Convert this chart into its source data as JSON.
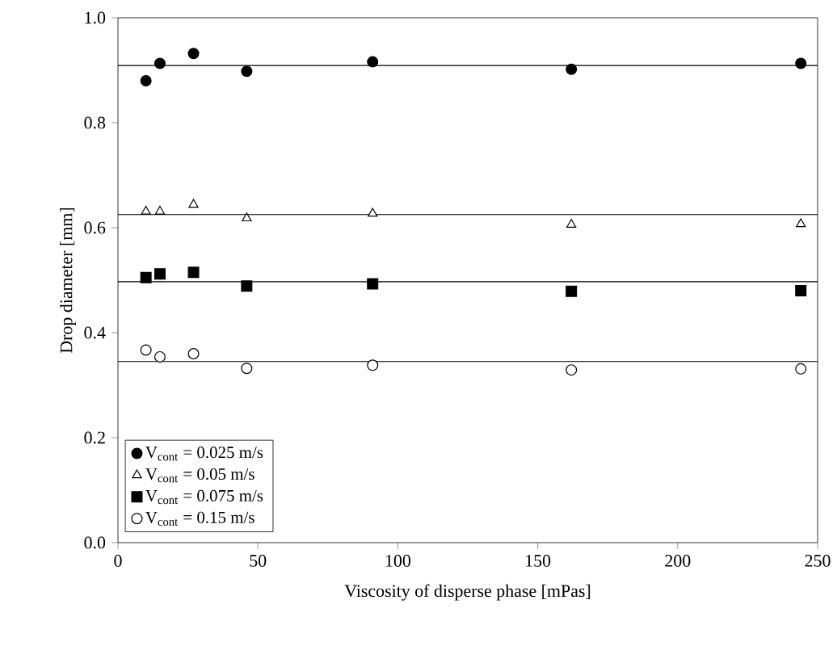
{
  "chart_data": {
    "type": "scatter",
    "xlabel": "Viscosity of disperse phase [mPas]",
    "ylabel": "Drop diameter [mm]",
    "x": [
      10,
      15,
      27,
      46,
      91,
      162,
      244
    ],
    "series": [
      {
        "name": "V$_{cont}$ = 0.025 m/s",
        "color": "#000000",
        "marker": "circle",
        "values": [
          0.88,
          0.913,
          0.932,
          0.898,
          0.916,
          0.902,
          0.913
        ]
      },
      {
        "name": "V$_{cont}$ = 0.05 m/s",
        "color": "#000000",
        "marker": "triangle",
        "values": [
          0.631,
          0.631,
          0.644,
          0.618,
          0.627,
          0.606,
          0.607
        ]
      },
      {
        "name": "V$_{cont}$ = 0.075 m/s",
        "color": "#000000",
        "marker": "square",
        "values": [
          0.505,
          0.512,
          0.515,
          0.489,
          0.493,
          0.479,
          0.48
        ]
      },
      {
        "name": "V$_{cont}$ = 0.15 m/s",
        "color": "#000000",
        "marker": "circle",
        "values": [
          0.367,
          0.354,
          0.36,
          0.332,
          0.338,
          0.329,
          0.331
        ]
      }
    ],
    "ref_lines": [
      {
        "axis": "y",
        "value": 0.909
      },
      {
        "axis": "y",
        "value": 0.625
      },
      {
        "axis": "y",
        "value": 0.497
      },
      {
        "axis": "y",
        "value": 0.345
      }
    ],
    "xlim": [
      0,
      250
    ],
    "ylim": [
      0,
      1.0
    ],
    "xticks": [
      0,
      50,
      100,
      150,
      200,
      250
    ],
    "yticks": [
      {
        "value": 0,
        "label": "0.0"
      },
      0.2,
      0.4,
      0.6,
      0.8,
      {
        "value": 1.0,
        "label": "1.0"
      }
    ],
    "grid": false,
    "legend": "bottom left"
  }
}
